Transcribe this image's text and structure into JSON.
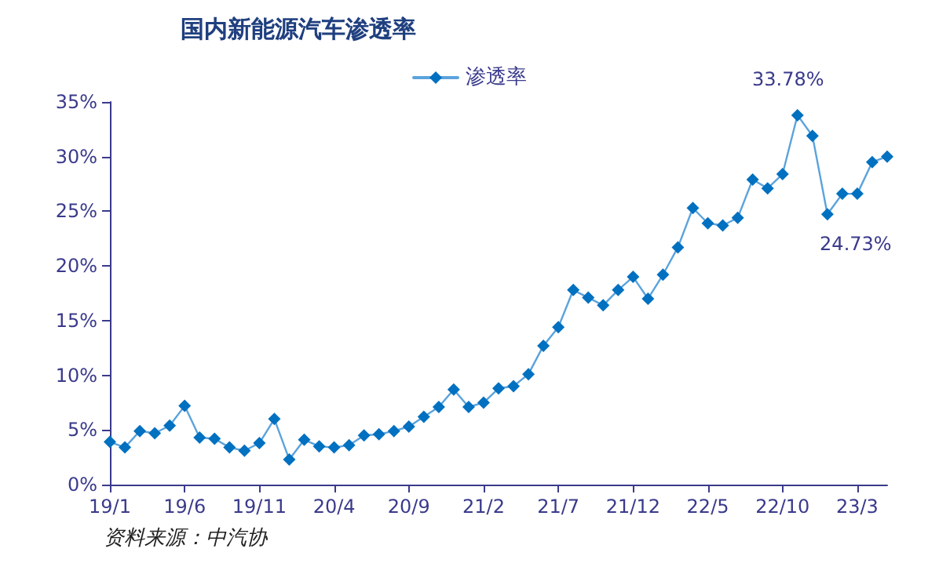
{
  "chart_data": {
    "type": "line",
    "title": "国内新能源汽车渗透率",
    "categories": [
      "19/1",
      null,
      null,
      null,
      null,
      "19/6",
      null,
      null,
      null,
      null,
      "19/11",
      null,
      null,
      null,
      null,
      "20/4",
      null,
      null,
      null,
      null,
      "20/9",
      null,
      null,
      null,
      null,
      "21/2",
      null,
      null,
      null,
      null,
      "21/7",
      null,
      null,
      null,
      null,
      "21/12",
      null,
      null,
      null,
      null,
      "22/5",
      null,
      null,
      null,
      null,
      "22/10",
      null,
      null,
      null,
      null,
      "23/3",
      null,
      null
    ],
    "series": [
      {
        "name": "渗透率",
        "color": "#0070c0",
        "values": [
          3.9,
          3.4,
          4.9,
          4.7,
          5.4,
          7.2,
          4.3,
          4.2,
          3.4,
          3.1,
          3.8,
          6.0,
          2.3,
          4.1,
          3.5,
          3.4,
          3.6,
          4.5,
          4.6,
          4.9,
          5.3,
          6.2,
          7.1,
          8.7,
          7.1,
          7.5,
          8.8,
          9.0,
          10.1,
          12.7,
          14.4,
          17.8,
          17.1,
          16.4,
          17.8,
          19.0,
          17.0,
          19.2,
          21.7,
          25.3,
          23.9,
          23.7,
          24.4,
          27.9,
          27.1,
          28.4,
          33.78,
          31.9,
          24.73,
          26.6,
          26.6,
          29.5,
          30.0
        ],
        "value_labels": [
          null,
          null,
          null,
          null,
          null,
          null,
          null,
          null,
          null,
          null,
          null,
          null,
          null,
          null,
          null,
          null,
          null,
          null,
          null,
          null,
          null,
          null,
          null,
          null,
          null,
          null,
          null,
          null,
          null,
          null,
          null,
          null,
          null,
          null,
          null,
          null,
          null,
          null,
          null,
          null,
          null,
          null,
          null,
          null,
          null,
          null,
          "33.78%",
          null,
          "24.73%",
          null,
          null,
          null,
          null
        ]
      }
    ],
    "ylim": [
      0,
      35
    ],
    "yticks": [
      {
        "value": 0,
        "label": "0%"
      },
      {
        "value": 5,
        "label": "5%"
      },
      {
        "value": 10,
        "label": "10%"
      },
      {
        "value": 15,
        "label": "15%"
      },
      {
        "value": 20,
        "label": "20%"
      },
      {
        "value": 25,
        "label": "25%"
      },
      {
        "value": 30,
        "label": "30%"
      },
      {
        "value": 35,
        "label": "35%"
      }
    ],
    "grid": false,
    "legend": "top",
    "marker": "diamond",
    "line_style": "solid",
    "annotations": [
      "资料来源：中汽协"
    ]
  }
}
